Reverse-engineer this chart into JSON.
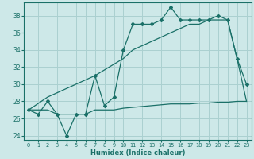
{
  "xlabel": "Humidex (Indice chaleur)",
  "bg_color": "#cde8e8",
  "grid_color": "#aad0d0",
  "line_color": "#1a7068",
  "xlim": [
    -0.5,
    23.5
  ],
  "ylim": [
    23.5,
    39.5
  ],
  "xticks": [
    0,
    1,
    2,
    3,
    4,
    5,
    6,
    7,
    8,
    9,
    10,
    11,
    12,
    13,
    14,
    15,
    16,
    17,
    18,
    19,
    20,
    21,
    22,
    23
  ],
  "yticks": [
    24,
    26,
    28,
    30,
    32,
    34,
    36,
    38
  ],
  "line1_x": [
    0,
    1,
    2,
    3,
    4,
    5,
    6,
    7,
    8,
    9,
    10,
    11,
    12,
    13,
    14,
    15,
    16,
    17,
    18,
    19,
    20,
    21,
    22,
    23
  ],
  "line1_y": [
    27,
    26.5,
    28,
    26.5,
    24,
    26.5,
    26.5,
    31,
    27.5,
    28.5,
    34,
    37,
    37,
    37,
    37.5,
    39,
    37.5,
    37.5,
    37.5,
    37.5,
    38,
    37.5,
    33,
    30
  ],
  "line2_x": [
    0,
    2,
    3,
    7,
    10,
    11,
    12,
    13,
    14,
    15,
    16,
    17,
    18,
    19,
    20,
    21,
    22,
    23
  ],
  "line2_y": [
    27,
    28.5,
    29,
    31,
    33,
    34,
    34.5,
    35,
    35.5,
    36,
    36.5,
    37,
    37,
    37.5,
    37.5,
    37.5,
    33,
    28
  ],
  "line3_x": [
    0,
    1,
    2,
    3,
    4,
    5,
    6,
    7,
    8,
    9,
    10,
    11,
    12,
    13,
    14,
    15,
    16,
    17,
    18,
    19,
    20,
    21,
    22,
    23
  ],
  "line3_y": [
    27,
    27,
    27,
    26.5,
    26.5,
    26.5,
    26.5,
    27,
    27,
    27,
    27.2,
    27.3,
    27.4,
    27.5,
    27.6,
    27.7,
    27.7,
    27.7,
    27.8,
    27.8,
    27.9,
    27.9,
    28,
    28
  ]
}
